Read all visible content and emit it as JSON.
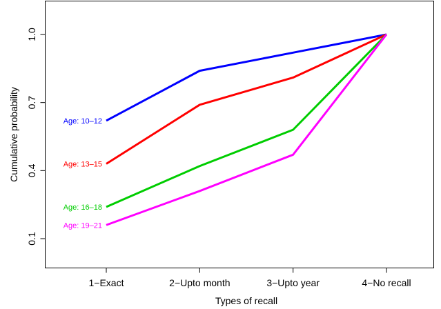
{
  "chart_data": {
    "type": "line",
    "xlabel": "Types of recall",
    "ylabel": "Cumulative probability",
    "categories": [
      "1−Exact",
      "2−Upto month",
      "3−Upto year",
      "4−No recall"
    ],
    "yticks": [
      "0.1",
      "0.4",
      "0.7",
      "1.0"
    ],
    "ylim": [
      0.0,
      1.1
    ],
    "grid": false,
    "series": [
      {
        "name": "Age: 10–12",
        "color": "#0000ff",
        "values": [
          0.62,
          0.84,
          0.92,
          1.0
        ]
      },
      {
        "name": "Age: 13–15",
        "color": "#ff0000",
        "values": [
          0.43,
          0.69,
          0.81,
          1.0
        ]
      },
      {
        "name": "Age: 16–18",
        "color": "#00cd00",
        "values": [
          0.24,
          0.42,
          0.58,
          1.0
        ]
      },
      {
        "name": "Age: 19–21",
        "color": "#ff00ff",
        "values": [
          0.16,
          0.31,
          0.47,
          1.0
        ]
      }
    ]
  }
}
